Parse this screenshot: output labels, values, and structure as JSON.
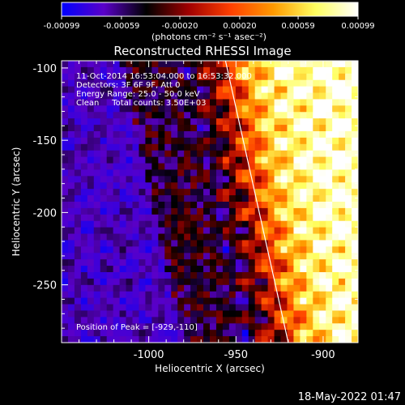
{
  "colorbar": {
    "ticks": [
      "-0.00099",
      "-0.00059",
      "-0.00020",
      "0.00020",
      "0.00059",
      "0.00099"
    ],
    "unit_label": "(photons cm⁻² s⁻¹ asec⁻²)",
    "colormap": [
      "#0000ff",
      "#5a00c8",
      "#000000",
      "#a00000",
      "#ff4000",
      "#ff9a00",
      "#ffff60",
      "#ffffff"
    ]
  },
  "image_title": "Reconstructed RHESSI Image",
  "annotations": {
    "time": "11-Oct-2014 16:53:04.000 to 16:53:32.000",
    "detectors": "Detectors: 3F 6F 9F, Att 0",
    "energy": "Energy Range: 25.0 - 50.0 keV",
    "clean": "Clean     Total counts: 3.50E+03",
    "peak": "Position of Peak = [-929,-110]"
  },
  "footer": {
    "date": "18-May-2022 01:47"
  },
  "chart_data": {
    "type": "heatmap",
    "title": "Reconstructed RHESSI Image",
    "xlabel": "Heliocentric X (arcsec)",
    "ylabel": "Heliocentric Y (arcsec)",
    "xlim": [
      -1050,
      -880
    ],
    "ylim": [
      -290,
      -95
    ],
    "x_ticks": [
      -1000,
      -950,
      -900
    ],
    "x_tick_labels": [
      "-1000",
      "-950",
      "-900"
    ],
    "y_ticks": [
      -100,
      -150,
      -200,
      -250
    ],
    "y_tick_labels": [
      "-100",
      "-150",
      "-200",
      "-250"
    ],
    "value_range": [
      -0.00099,
      0.00099
    ],
    "limb_line": [
      [
        -956,
        -95
      ],
      [
        -920,
        -290
      ]
    ],
    "peak_position": [
      -929,
      -110
    ]
  }
}
